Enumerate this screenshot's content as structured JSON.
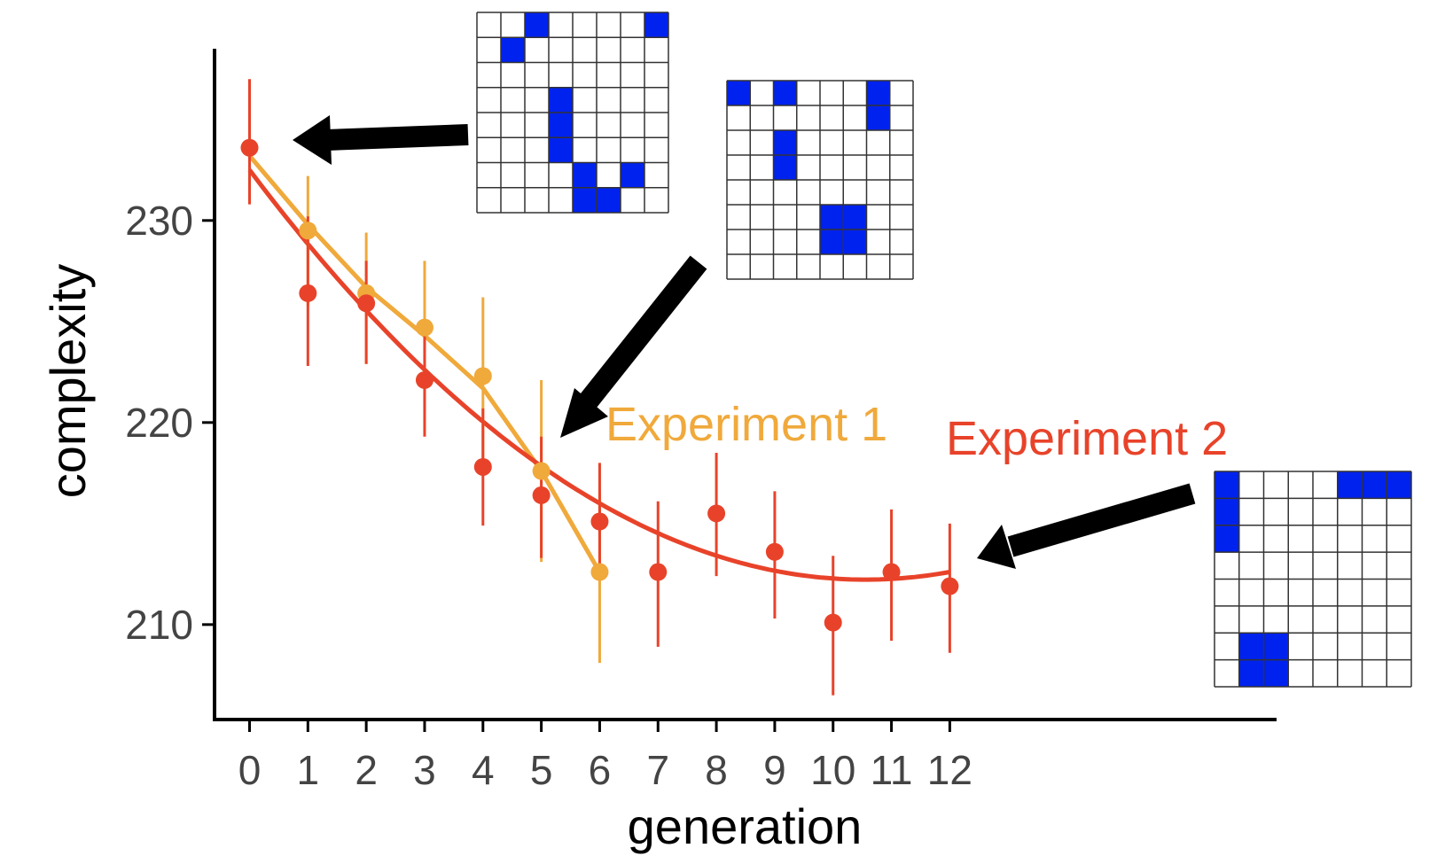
{
  "chart_data": {
    "type": "scatter",
    "xlabel": "generation",
    "ylabel": "complexity",
    "x_ticks": [
      0,
      1,
      2,
      3,
      4,
      5,
      6,
      7,
      8,
      9,
      10,
      11,
      12
    ],
    "y_ticks": [
      210,
      220,
      230
    ],
    "xlim": [
      -0.6,
      17.6
    ],
    "ylim": [
      205.3,
      238.5
    ],
    "grid": false,
    "legend": "none",
    "series": [
      {
        "name": "Experiment 1",
        "color": "#f0a93b",
        "x": [
          1,
          2,
          3,
          4,
          5,
          6
        ],
        "y": [
          229.5,
          226.4,
          224.7,
          222.3,
          217.6,
          212.6
        ],
        "err_low": [
          225.8,
          222.9,
          220.6,
          218.0,
          213.1,
          208.1
        ],
        "err_high": [
          232.2,
          229.4,
          228.0,
          226.2,
          222.1,
          216.6
        ],
        "fit": [
          [
            0,
            233.2
          ],
          [
            1,
            229.8
          ],
          [
            2,
            226.7
          ],
          [
            3,
            224.3
          ],
          [
            4,
            221.7
          ],
          [
            5,
            217.6
          ],
          [
            6,
            212.6
          ]
        ]
      },
      {
        "name": "Experiment 2",
        "color": "#e8432a",
        "x": [
          0,
          1,
          2,
          3,
          4,
          5,
          6,
          7,
          8,
          9,
          10,
          11,
          12
        ],
        "y": [
          233.6,
          226.4,
          225.9,
          222.1,
          217.8,
          216.4,
          215.1,
          212.6,
          215.5,
          213.6,
          210.1,
          212.6,
          211.9
        ],
        "err_low": [
          230.8,
          222.8,
          222.9,
          219.3,
          214.9,
          213.3,
          212.2,
          208.9,
          212.4,
          210.3,
          206.5,
          209.2,
          208.6
        ],
        "err_high": [
          237.0,
          230.2,
          228.0,
          225.1,
          220.7,
          219.3,
          218.0,
          216.1,
          218.5,
          216.6,
          213.4,
          215.7,
          215.0
        ],
        "fit_poly": [
          232.5,
          -3.842,
          0.182
        ]
      }
    ],
    "annotations": [
      {
        "text": "Experiment 1",
        "color": "#f0a93b"
      },
      {
        "text": "Experiment 2",
        "color": "#e8432a"
      }
    ],
    "insets": [
      {
        "points_to_generation": 0,
        "fill_color": "#0022ee",
        "cells": [
          [
            0,
            2
          ],
          [
            0,
            7
          ],
          [
            1,
            1
          ],
          [
            3,
            3
          ],
          [
            4,
            3
          ],
          [
            5,
            3
          ],
          [
            6,
            4
          ],
          [
            6,
            6
          ],
          [
            7,
            4
          ],
          [
            7,
            5
          ]
        ]
      },
      {
        "points_to_generation": 5,
        "fill_color": "#0022ee",
        "cells": [
          [
            0,
            0
          ],
          [
            0,
            2
          ],
          [
            0,
            6
          ],
          [
            1,
            6
          ],
          [
            2,
            2
          ],
          [
            3,
            2
          ],
          [
            5,
            4
          ],
          [
            5,
            5
          ],
          [
            6,
            4
          ],
          [
            6,
            5
          ]
        ]
      },
      {
        "points_to_generation": 12,
        "fill_color": "#0022ee",
        "cells": [
          [
            0,
            0
          ],
          [
            0,
            5
          ],
          [
            0,
            6
          ],
          [
            0,
            7
          ],
          [
            1,
            0
          ],
          [
            2,
            0
          ],
          [
            6,
            1
          ],
          [
            6,
            2
          ],
          [
            7,
            1
          ],
          [
            7,
            2
          ]
        ]
      }
    ]
  }
}
